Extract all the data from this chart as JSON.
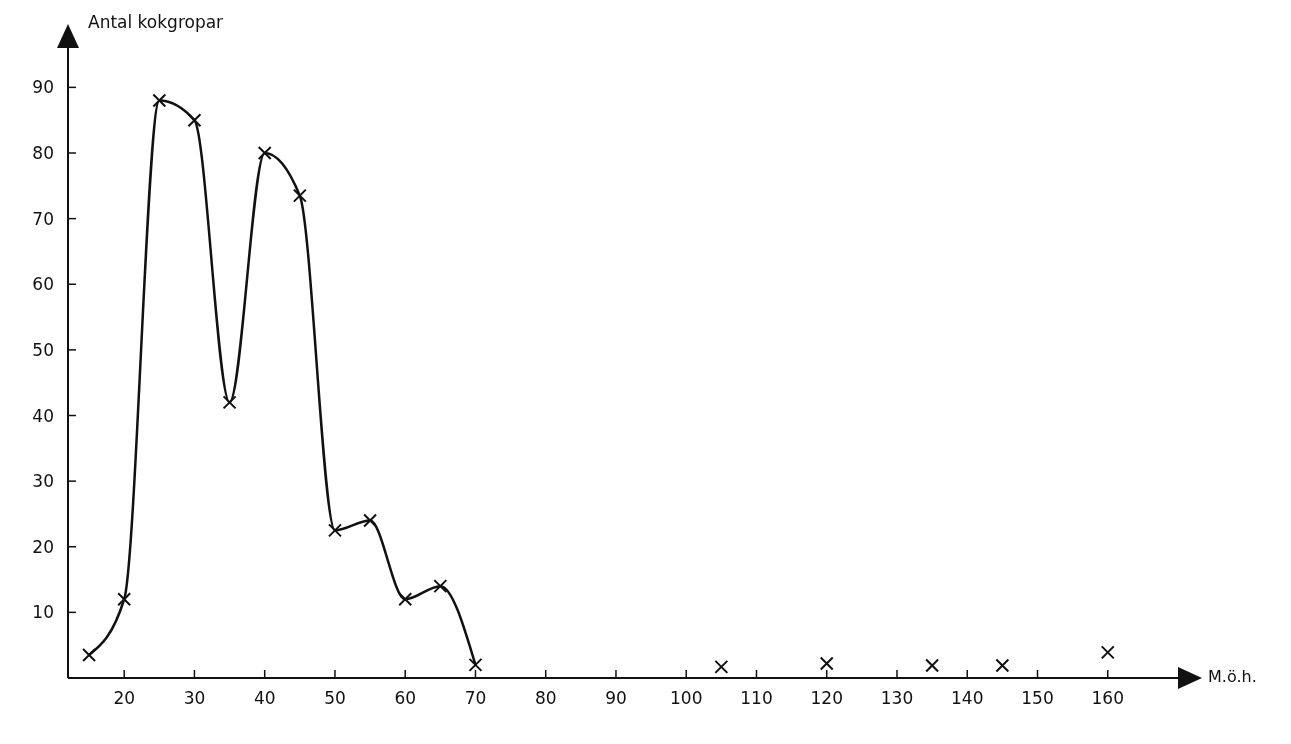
{
  "chart_data": {
    "type": "line",
    "xlabel": "M.ö.h.",
    "ylabel": "Antal kokgropar",
    "xlim": [
      12,
      170
    ],
    "ylim": [
      0,
      96
    ],
    "xticks": [
      20,
      30,
      40,
      50,
      60,
      70,
      80,
      90,
      100,
      110,
      120,
      130,
      140,
      150,
      160
    ],
    "yticks": [
      10,
      20,
      30,
      40,
      50,
      60,
      70,
      80,
      90
    ],
    "grid": false,
    "marker": "cross",
    "line_style": "solid",
    "series": [
      {
        "type": "line",
        "color": "#111111",
        "x": [
          15,
          20,
          25,
          30,
          35,
          40,
          45,
          50,
          55,
          60,
          65,
          70
        ],
        "values": [
          3.5,
          12,
          88,
          85,
          42,
          80,
          73.5,
          22.5,
          24,
          12,
          14,
          2
        ]
      },
      {
        "type": "scatter",
        "color": "#111111",
        "x": [
          105,
          120,
          135,
          145,
          160
        ],
        "values": [
          1.7,
          2.2,
          1.9,
          1.9,
          3.9
        ]
      }
    ]
  }
}
